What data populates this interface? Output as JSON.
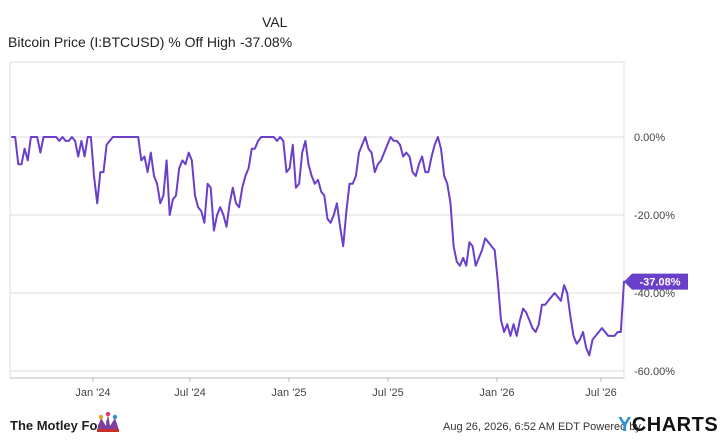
{
  "legend": {
    "header": "VAL",
    "series_name": "Bitcoin Price (I:BTCUSD) % Off High",
    "series_value": "-37.08%"
  },
  "footer": {
    "brand": "The Motley Fool",
    "timestamp": "Aug 26, 2026, 6:52 AM EDT Powered by",
    "provider": "CHARTS",
    "provider_prefix": "Y"
  },
  "colors": {
    "series": "#6a3fc9",
    "grid": "#dcdcdc",
    "tag_text": "#ffffff"
  },
  "chart_data": {
    "type": "line",
    "title": "",
    "xlabel": "",
    "ylabel": "",
    "y_unit": "%",
    "ylim": [
      -60,
      0
    ],
    "y_ticks": [
      0,
      -20,
      -40,
      -60
    ],
    "y_tick_labels": [
      "0.00%",
      "-20.00%",
      "-40.00%",
      "-60.00%"
    ],
    "x_tick_labels": [
      "Jan '24",
      "Jul '24",
      "Jan '25",
      "Jul '25",
      "Jan '26",
      "Jul '26"
    ],
    "grid": true,
    "legend_position": "top-left",
    "last_value_label": "-37.08%",
    "series": [
      {
        "name": "Bitcoin Price (I:BTCUSD) % Off High",
        "values": [
          0,
          0,
          -7,
          -7,
          -3,
          -6,
          0,
          0,
          0,
          -4,
          0,
          0,
          0,
          0,
          0,
          -1,
          0,
          -1,
          -1,
          0,
          -1,
          -5,
          -1,
          -5,
          0,
          0,
          -10,
          -17,
          -9,
          -9,
          -2,
          -1,
          0,
          0,
          0,
          0,
          0,
          0,
          0,
          0,
          0,
          -6,
          -5,
          -9,
          -4,
          -10,
          -12,
          -17,
          -15,
          -6,
          -20,
          -16,
          -15,
          -8,
          -6,
          -7,
          -4,
          -6,
          -15,
          -18,
          -19,
          -22,
          -12,
          -13,
          -24,
          -20,
          -18,
          -20,
          -23,
          -17,
          -13,
          -17,
          -18,
          -13,
          -10,
          -8,
          -3,
          -3,
          -1,
          0,
          0,
          0,
          0,
          0,
          -1,
          0,
          -1,
          -9,
          -8,
          -2,
          -13,
          -12,
          -4,
          -1,
          -7,
          -10,
          -12,
          -11,
          -14,
          -15,
          -21,
          -22,
          -20,
          -17,
          -23,
          -28,
          -19,
          -12,
          -12,
          -10,
          -4,
          -2,
          0,
          -3,
          -4,
          -9,
          -7,
          -6,
          -4,
          -2,
          0,
          -1,
          -1,
          -2,
          -5,
          -4,
          -5,
          -9,
          -10,
          -7,
          -5,
          -9,
          -9,
          -5,
          -2,
          0,
          -3,
          -10,
          -12,
          -17,
          -28,
          -32,
          -33,
          -31,
          -33,
          -27,
          -28,
          -33,
          -31,
          -29,
          -26,
          -27,
          -28,
          -29,
          -37,
          -47,
          -50,
          -48,
          -51,
          -48,
          -51,
          -47,
          -44,
          -45,
          -47,
          -49,
          -50,
          -48,
          -43,
          -43,
          -42,
          -41,
          -40,
          -41,
          -42,
          -38,
          -40,
          -46,
          -51,
          -53,
          -52,
          -50,
          -54,
          -56,
          -52,
          -51,
          -50,
          -49,
          -50,
          -51,
          -51,
          -51,
          -50,
          -50,
          -37.08
        ]
      }
    ]
  }
}
